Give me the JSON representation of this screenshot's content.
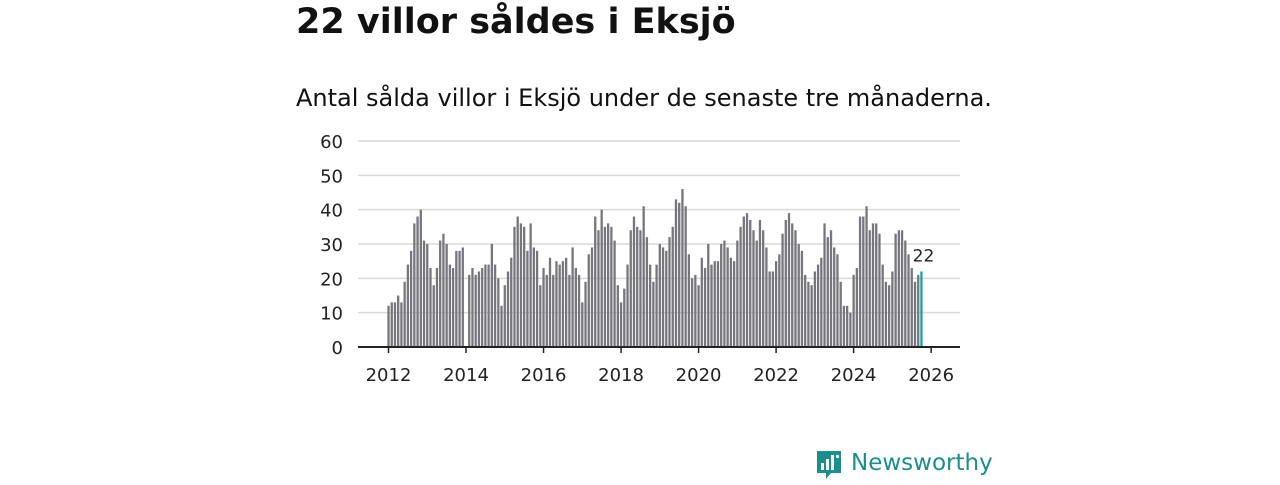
{
  "header": {
    "title": "22 villor såldes i Eksjö",
    "subtitle": "Antal sålda villor i Eksjö under de senaste tre månaderna."
  },
  "logo": {
    "text": "Newsworthy",
    "color": "#1a8f8c",
    "icon": "bar-chart-speech-icon"
  },
  "chart_data": {
    "type": "bar",
    "title": "",
    "xlabel": "",
    "ylabel": "",
    "ylim": [
      0,
      60
    ],
    "y_ticks": [
      "0",
      "10",
      "20",
      "30",
      "40",
      "50",
      "60"
    ],
    "x_ticks": [
      "2012",
      "2014",
      "2016",
      "2018",
      "2020",
      "2022",
      "2024",
      "2026"
    ],
    "grid": true,
    "bar_color": "#76767d",
    "highlight_color": "#1aa39c",
    "highlight_label": "22",
    "start": "2012-01",
    "values": [
      12,
      13,
      13,
      15,
      13,
      19,
      24,
      28,
      36,
      38,
      40,
      31,
      30,
      23,
      18,
      23,
      31,
      33,
      30,
      24,
      23,
      28,
      28,
      29,
      0,
      21,
      23,
      21,
      22,
      23,
      24,
      24,
      30,
      24,
      20,
      12,
      18,
      22,
      26,
      35,
      38,
      36,
      35,
      28,
      36,
      29,
      28,
      18,
      23,
      21,
      26,
      21,
      25,
      24,
      25,
      26,
      21,
      29,
      23,
      21,
      13,
      19,
      27,
      29,
      38,
      34,
      40,
      35,
      36,
      35,
      31,
      18,
      13,
      17,
      24,
      34,
      38,
      35,
      34,
      41,
      32,
      24,
      19,
      24,
      30,
      29,
      28,
      32,
      35,
      43,
      42,
      46,
      41,
      27,
      20,
      21,
      18,
      26,
      23,
      30,
      24,
      25,
      25,
      30,
      31,
      29,
      26,
      25,
      31,
      35,
      38,
      39,
      37,
      34,
      31,
      37,
      34,
      29,
      22,
      22,
      25,
      27,
      33,
      37,
      39,
      36,
      34,
      30,
      28,
      21,
      19,
      18,
      22,
      24,
      26,
      36,
      32,
      34,
      29,
      27,
      19,
      12,
      12,
      10,
      21,
      23,
      38,
      38,
      41,
      34,
      36,
      36,
      33,
      24,
      19,
      18,
      22,
      33,
      34,
      34,
      31,
      27,
      23,
      19,
      21,
      22
    ]
  }
}
